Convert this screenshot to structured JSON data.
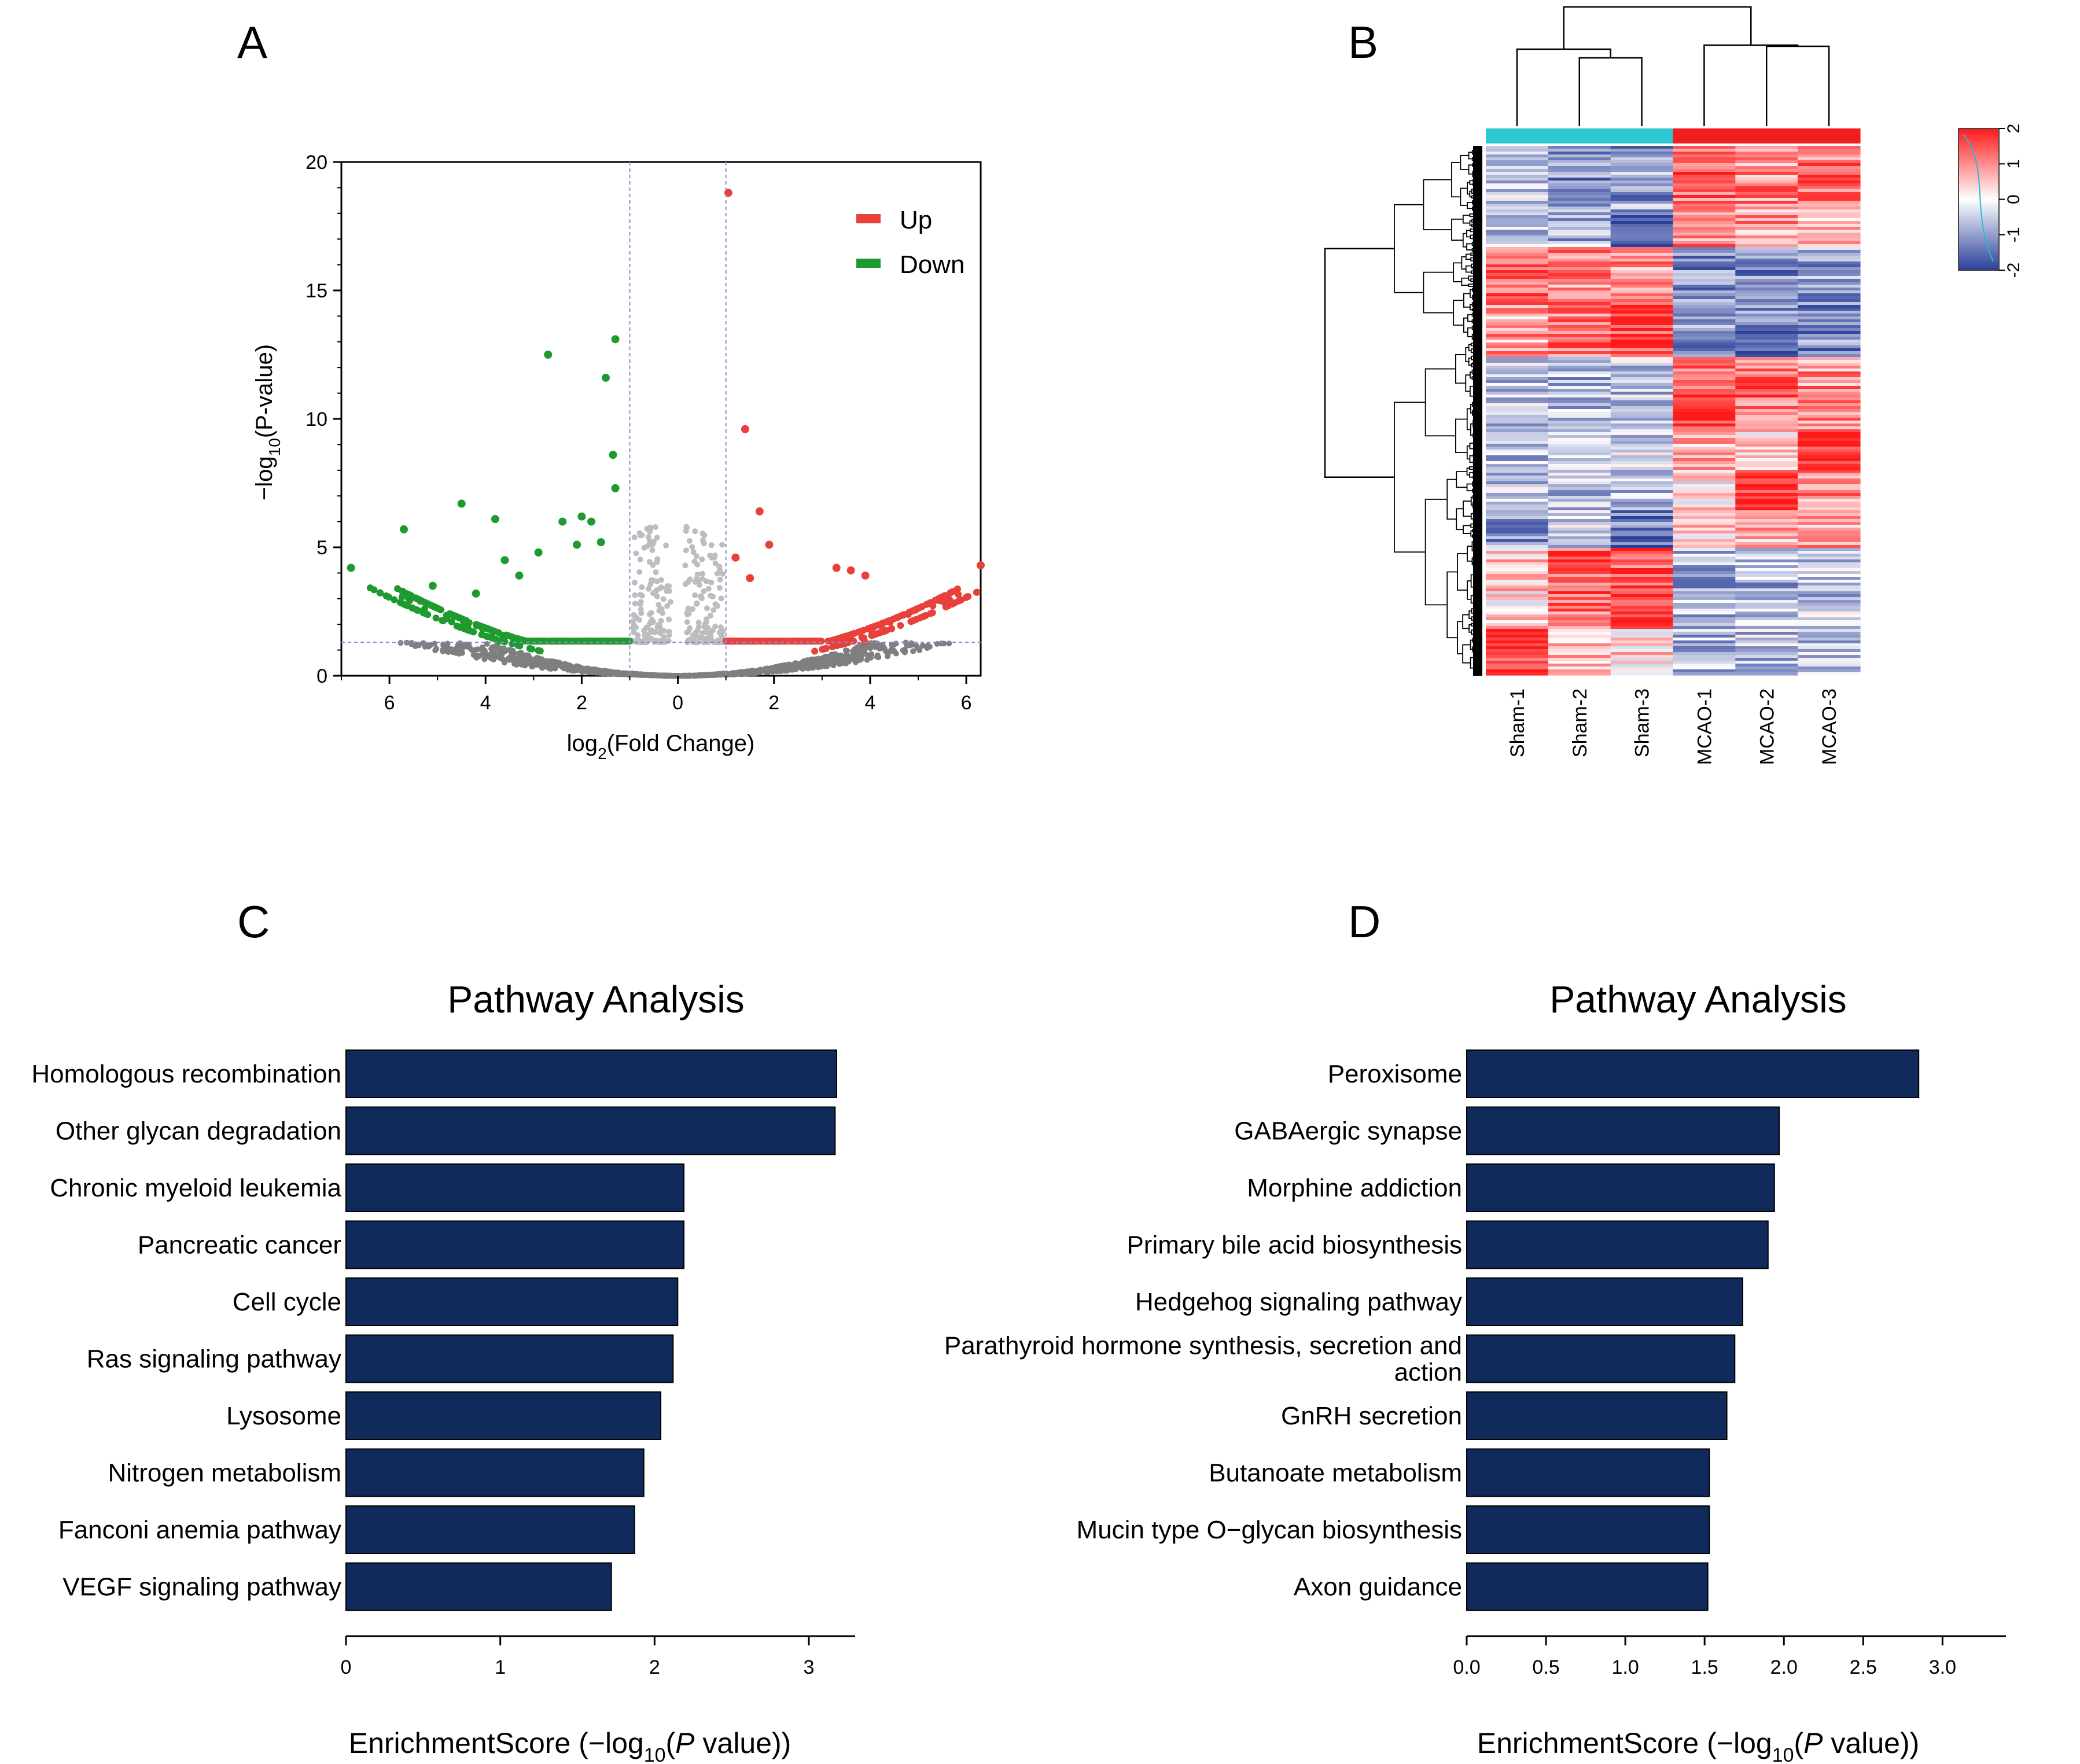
{
  "panel_labels": [
    "A",
    "B",
    "C",
    "D"
  ],
  "colors": {
    "up": "#e8413b",
    "down": "#1f9a2e",
    "ns_light": "#bdbdbd",
    "ns_dark": "#7f7f7f",
    "bar": "#102a5c",
    "heat_high": "#ff1a1a",
    "heat_low": "#2a3f9a",
    "group_sham": "#2ec8d3",
    "group_mcao": "#f21d1d"
  },
  "chart_data": [
    {
      "id": "A",
      "type": "scatter",
      "title": "",
      "xlabel_main": "log",
      "xlabel_sub": "2",
      "xlabel_tail": "(Fold Change)",
      "ylabel_pre": "−log",
      "ylabel_sub": "10",
      "ylabel_tail": "(P-value)",
      "xlim": [
        -7,
        6.3
      ],
      "ylim": [
        0,
        20
      ],
      "xtick_values": [
        -6,
        -4,
        -2,
        0,
        2,
        4,
        6
      ],
      "xtick_labels": [
        "6",
        "4",
        "2",
        "0",
        "2",
        "4",
        "6"
      ],
      "yticks": [
        0,
        5,
        10,
        15,
        20
      ],
      "fc_threshold": 1,
      "p_threshold": 1.3,
      "legend": [
        {
          "name": "Up",
          "color": "#e8413b"
        },
        {
          "name": "Down",
          "color": "#1f9a2e"
        }
      ],
      "highlight_up": [
        [
          1.05,
          18.8
        ],
        [
          1.4,
          9.6
        ],
        [
          1.7,
          6.4
        ],
        [
          1.9,
          5.1
        ],
        [
          3.3,
          4.2
        ],
        [
          3.6,
          4.1
        ],
        [
          3.9,
          3.9
        ],
        [
          6.3,
          4.3
        ],
        [
          1.2,
          4.6
        ],
        [
          1.5,
          3.8
        ]
      ],
      "highlight_down": [
        [
          -1.3,
          13.1
        ],
        [
          -1.5,
          11.6
        ],
        [
          -2.7,
          12.5
        ],
        [
          -1.35,
          8.6
        ],
        [
          -1.3,
          7.3
        ],
        [
          -4.5,
          6.7
        ],
        [
          -3.8,
          6.1
        ],
        [
          -5.7,
          5.7
        ],
        [
          -6.8,
          4.2
        ],
        [
          -2.4,
          6.0
        ],
        [
          -2.0,
          6.2
        ],
        [
          -1.8,
          6.0
        ],
        [
          -1.6,
          5.2
        ],
        [
          -3.6,
          4.5
        ],
        [
          -2.1,
          5.1
        ],
        [
          -2.9,
          4.8
        ],
        [
          -5.1,
          3.5
        ],
        [
          -4.2,
          3.2
        ],
        [
          -3.3,
          3.9
        ]
      ]
    },
    {
      "id": "B",
      "type": "heatmap",
      "samples": [
        "Sham-1",
        "Sham-2",
        "Sham-3",
        "MCAO-1",
        "MCAO-2",
        "MCAO-3"
      ],
      "groups": [
        "Sham",
        "Sham",
        "Sham",
        "MCAO",
        "MCAO",
        "MCAO"
      ],
      "colorbar_ticks": [
        2,
        1,
        0,
        -1,
        -2
      ],
      "colorbar_tick_labels": [
        "2",
        "1",
        "0",
        "-1",
        "-2"
      ],
      "colorbar_range": [
        -2,
        2
      ],
      "blocks": [
        {
          "frac": 0.12,
          "values": [
            -0.6,
            -1.2,
            -1.0,
            1.3,
            1.0,
            1.2
          ]
        },
        {
          "frac": 0.07,
          "values": [
            -0.5,
            -0.8,
            -1.8,
            1.0,
            0.9,
            0.4
          ]
        },
        {
          "frac": 0.11,
          "values": [
            1.2,
            1.0,
            0.9,
            -1.2,
            -1.1,
            -1.0
          ]
        },
        {
          "frac": 0.1,
          "values": [
            0.8,
            1.2,
            1.6,
            -1.0,
            -1.3,
            -1.2
          ]
        },
        {
          "frac": 0.14,
          "values": [
            -0.6,
            -0.7,
            -0.6,
            1.4,
            1.3,
            1.0
          ]
        },
        {
          "frac": 0.07,
          "values": [
            -0.7,
            -0.6,
            -0.5,
            0.6,
            0.4,
            1.9
          ]
        },
        {
          "frac": 0.08,
          "values": [
            -0.5,
            -0.6,
            -0.7,
            0.2,
            1.8,
            0.9
          ]
        },
        {
          "frac": 0.07,
          "values": [
            -1.0,
            -0.4,
            -1.4,
            0.3,
            0.6,
            0.8
          ]
        },
        {
          "frac": 0.08,
          "values": [
            0.4,
            1.5,
            1.5,
            -0.8,
            -0.8,
            -0.7
          ]
        },
        {
          "frac": 0.07,
          "values": [
            0.3,
            1.3,
            1.8,
            -0.7,
            -0.6,
            -0.6
          ]
        },
        {
          "frac": 0.09,
          "values": [
            1.8,
            0.5,
            0.3,
            -0.7,
            -0.6,
            -0.6
          ]
        }
      ]
    },
    {
      "id": "C",
      "type": "bar",
      "title": "Pathway Analysis",
      "xlabel_pre": "EnrichmentScore (−log",
      "xlabel_sub": "10",
      "xlabel_mid": "(",
      "xlabel_ital": "P",
      "xlabel_tail": " value))",
      "categories": [
        "Homologous recombination",
        "Other glycan degradation",
        "Chronic myeloid leukemia",
        "Pancreatic cancer",
        "Cell cycle",
        "Ras signaling pathway",
        "Lysosome",
        "Nitrogen metabolism",
        "Fanconi anemia pathway",
        "VEGF signaling pathway"
      ],
      "values": [
        3.18,
        3.17,
        2.19,
        2.19,
        2.15,
        2.12,
        2.04,
        1.93,
        1.87,
        1.72
      ],
      "xlim": [
        0,
        3.3
      ],
      "xticks": [
        0,
        1,
        2,
        3
      ],
      "xtick_labels": [
        "0",
        "1",
        "2",
        "3"
      ]
    },
    {
      "id": "D",
      "type": "bar",
      "title": "Pathway Analysis",
      "xlabel_pre": "EnrichmentScore (−log",
      "xlabel_sub": "10",
      "xlabel_mid": "(",
      "xlabel_ital": "P",
      "xlabel_tail": " value))",
      "categories": [
        "Peroxisome",
        "GABAergic synapse",
        "Morphine addiction",
        "Primary bile acid biosynthesis",
        "Hedgehog signaling pathway",
        "Parathyroid hormone synthesis, secretion and action",
        "GnRH secretion",
        "Butanoate metabolism",
        "Mucin type O−glycan biosynthesis",
        "Axon guidance"
      ],
      "category_lines": [
        [
          "Peroxisome"
        ],
        [
          "GABAergic synapse"
        ],
        [
          "Morphine addiction"
        ],
        [
          "Primary bile acid biosynthesis"
        ],
        [
          "Hedgehog signaling pathway"
        ],
        [
          "Parathyroid hormone synthesis, secretion and",
          "action"
        ],
        [
          "GnRH secretion"
        ],
        [
          "Butanoate metabolism"
        ],
        [
          "Mucin type O−glycan biosynthesis"
        ],
        [
          "Axon guidance"
        ]
      ],
      "values": [
        2.85,
        1.97,
        1.94,
        1.9,
        1.74,
        1.69,
        1.64,
        1.53,
        1.53,
        1.52
      ],
      "xlim": [
        0,
        3.4
      ],
      "xticks": [
        0,
        0.5,
        1.0,
        1.5,
        2.0,
        2.5,
        3.0
      ],
      "xtick_labels": [
        "0.0",
        "0.5",
        "1.0",
        "1.5",
        "2.0",
        "2.5",
        "3.0"
      ]
    }
  ]
}
